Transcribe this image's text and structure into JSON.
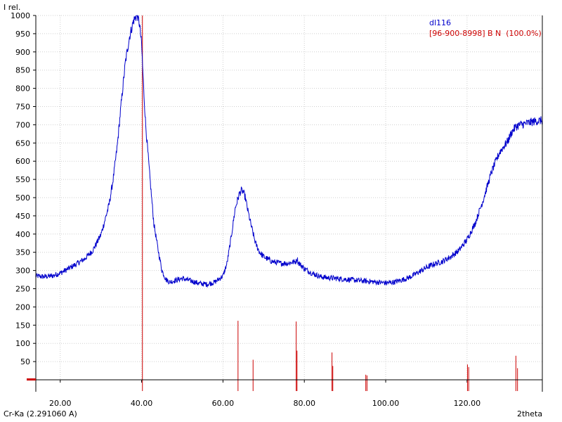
{
  "chart_data": {
    "type": "line",
    "ylabel": "I rel.",
    "xlabel": "2theta",
    "radiation_label": "Cr-Ka (2.291060 A)",
    "xlim": [
      14,
      138.5
    ],
    "ylim": [
      0,
      1000
    ],
    "x_ticks": [
      20,
      40,
      60,
      80,
      100,
      120
    ],
    "x_tick_labels": [
      "20.00",
      "40.00",
      "60.00",
      "80.00",
      "100.00",
      "120.00"
    ],
    "y_ticks": [
      50,
      100,
      150,
      200,
      250,
      300,
      350,
      400,
      450,
      500,
      550,
      600,
      650,
      700,
      750,
      800,
      850,
      900,
      950,
      1000
    ],
    "grid": true,
    "legend_position": "top-right",
    "series": [
      {
        "name": "dl116",
        "color": "#0000cc",
        "x": [
          14,
          16,
          18,
          20,
          22,
          24,
          26,
          28,
          30,
          32,
          33,
          34,
          35,
          36,
          37,
          38,
          38.5,
          39,
          39.5,
          40,
          40.5,
          41,
          42,
          43,
          44,
          45,
          46,
          47,
          48,
          50,
          52,
          54,
          56,
          58,
          60,
          61,
          62,
          63,
          64,
          64.5,
          65,
          65.5,
          66,
          67,
          68,
          69,
          70,
          72,
          74,
          76,
          78,
          78.2,
          78.5,
          80,
          82,
          84,
          86,
          88,
          90,
          92,
          94,
          96,
          98,
          100,
          102,
          104,
          106,
          108,
          110,
          112,
          114,
          116,
          118,
          120,
          122,
          124,
          126,
          128,
          130,
          131,
          132,
          133,
          134,
          135,
          136,
          137,
          138.5
        ],
        "values": [
          285,
          283,
          285,
          293,
          305,
          318,
          332,
          355,
          398,
          480,
          550,
          640,
          760,
          870,
          940,
          985,
          995,
          1000,
          975,
          920,
          800,
          700,
          560,
          430,
          360,
          300,
          275,
          268,
          272,
          278,
          272,
          265,
          262,
          268,
          285,
          320,
          390,
          470,
          510,
          520,
          515,
          500,
          470,
          420,
          375,
          350,
          338,
          325,
          320,
          320,
          325,
          335,
          322,
          305,
          292,
          283,
          280,
          278,
          276,
          274,
          272,
          270,
          268,
          266,
          268,
          274,
          282,
          295,
          308,
          318,
          325,
          338,
          355,
          385,
          430,
          495,
          570,
          625,
          655,
          680,
          695,
          700,
          702,
          705,
          708,
          710,
          712
        ]
      },
      {
        "name": "[96-900-8998] B N  (100.0%)",
        "type": "stick",
        "color": "#cc0000",
        "x": [
          40.2,
          63.7,
          67.4,
          78.0,
          78.2,
          86.8,
          87.0,
          95.1,
          95.4,
          120.1,
          120.4,
          132.0,
          132.4
        ],
        "values": [
          1000,
          162,
          55,
          160,
          80,
          75,
          38,
          14,
          12,
          42,
          35,
          66,
          32
        ]
      }
    ]
  }
}
